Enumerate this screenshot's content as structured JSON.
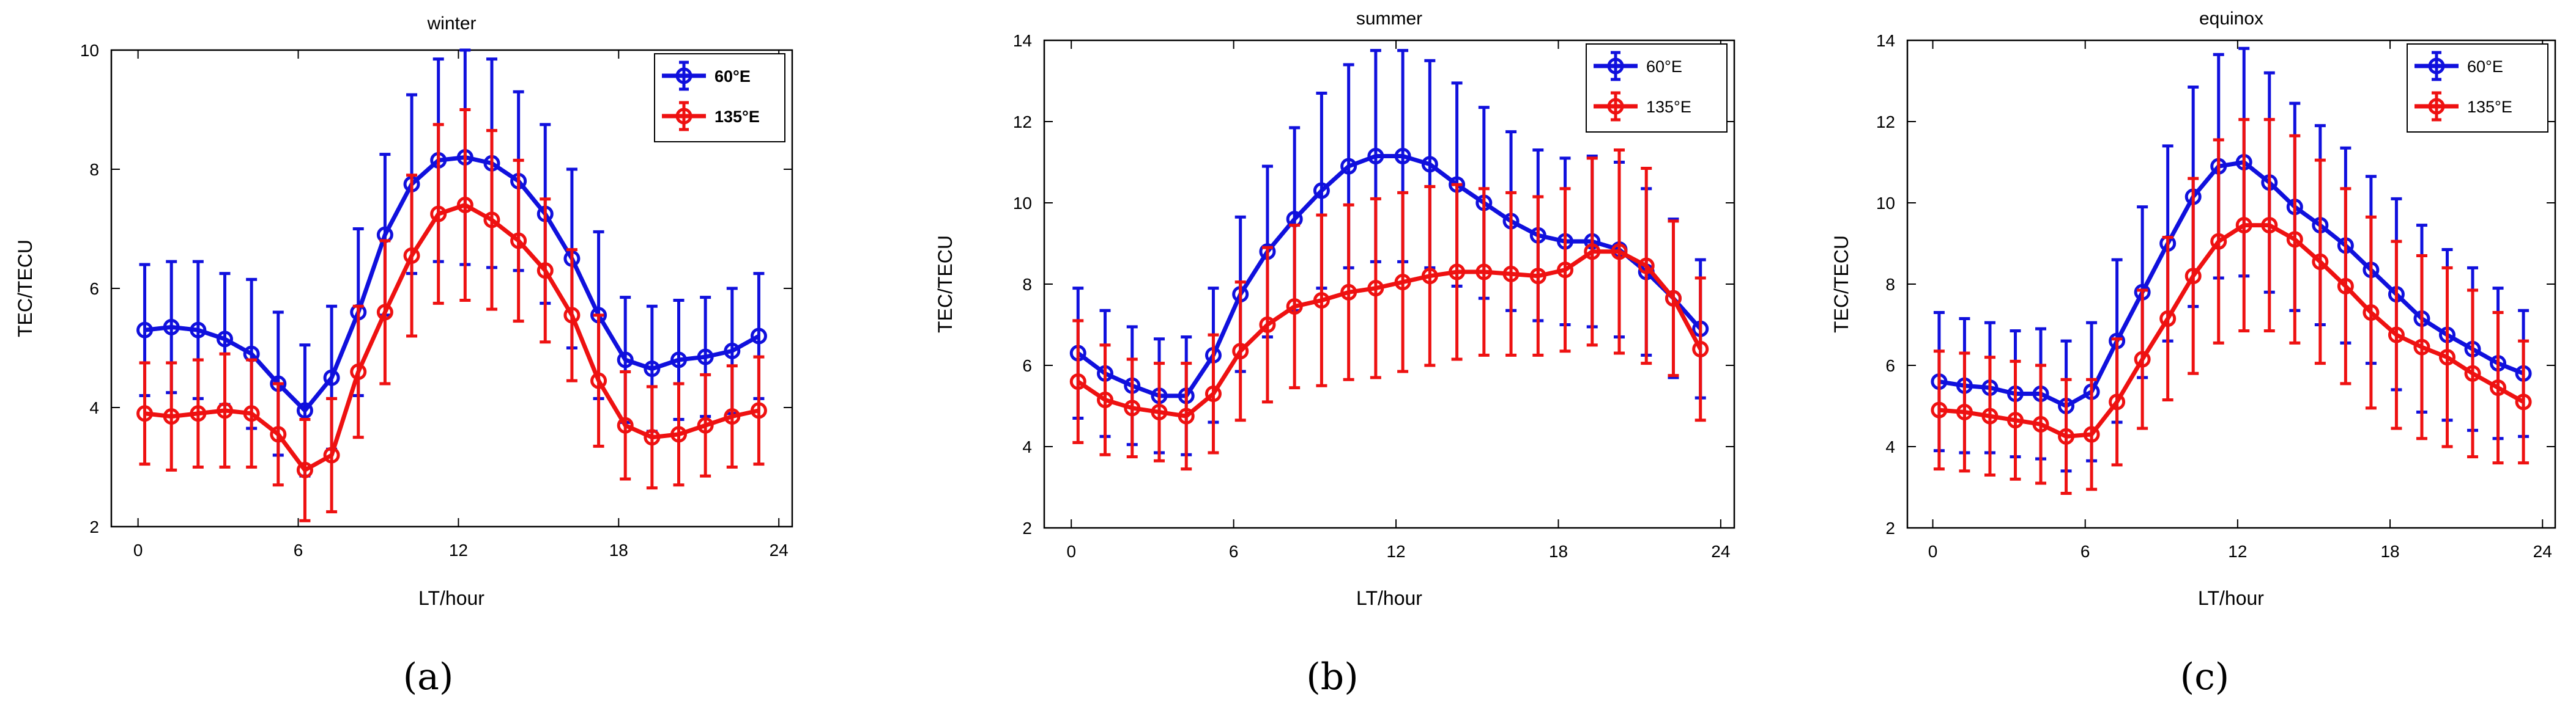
{
  "chart_data": [
    {
      "panel": "(a)",
      "type": "line",
      "title": "winter",
      "xlabel": "LT/hour",
      "ylabel": "TEC/TECU",
      "xlim": [
        -1,
        24.5
      ],
      "ylim": [
        2,
        10
      ],
      "xticks": [
        0,
        6,
        12,
        18,
        24
      ],
      "yticks": [
        2,
        4,
        6,
        8,
        10
      ],
      "legend_position": "top-right",
      "legend_bold": true,
      "x": [
        0.25,
        1.25,
        2.25,
        3.25,
        4.25,
        5.25,
        6.25,
        7.25,
        8.25,
        9.25,
        10.25,
        11.25,
        12.25,
        13.25,
        14.25,
        15.25,
        16.25,
        17.25,
        18.25,
        19.25,
        20.25,
        21.25,
        22.25,
        23.25
      ],
      "series": [
        {
          "name": "60°E",
          "color": "#1010dd",
          "values": [
            5.3,
            5.35,
            5.3,
            5.15,
            4.9,
            4.4,
            3.95,
            4.5,
            5.6,
            6.9,
            7.75,
            8.15,
            8.2,
            8.1,
            7.8,
            7.25,
            6.5,
            5.55,
            4.8,
            4.65,
            4.8,
            4.85,
            4.95,
            5.2
          ],
          "errors": [
            1.1,
            1.1,
            1.15,
            1.1,
            1.25,
            1.2,
            1.1,
            1.2,
            1.4,
            1.35,
            1.5,
            1.7,
            1.8,
            1.75,
            1.5,
            1.5,
            1.5,
            1.4,
            1.05,
            1.05,
            1.0,
            1.0,
            1.05,
            1.05
          ]
        },
        {
          "name": "135°E",
          "color": "#ee1111",
          "values": [
            3.9,
            3.85,
            3.9,
            3.95,
            3.9,
            3.55,
            2.95,
            3.2,
            4.6,
            5.6,
            6.55,
            7.25,
            7.4,
            7.15,
            6.8,
            6.3,
            5.55,
            4.45,
            3.7,
            3.5,
            3.55,
            3.7,
            3.85,
            3.95
          ],
          "errors": [
            0.85,
            0.9,
            0.9,
            0.95,
            0.9,
            0.85,
            0.85,
            0.95,
            1.1,
            1.2,
            1.35,
            1.5,
            1.6,
            1.5,
            1.35,
            1.2,
            1.1,
            1.1,
            0.9,
            0.85,
            0.85,
            0.85,
            0.85,
            0.9
          ]
        }
      ]
    },
    {
      "panel": "(b)",
      "type": "line",
      "title": "summer",
      "xlabel": "LT/hour",
      "ylabel": "TEC/TECU",
      "xlim": [
        -1,
        24.5
      ],
      "ylim": [
        2,
        14
      ],
      "xticks": [
        0,
        6,
        12,
        18,
        24
      ],
      "yticks": [
        2,
        4,
        6,
        8,
        10,
        12,
        14
      ],
      "legend_position": "top-right",
      "legend_bold": false,
      "x": [
        0.25,
        1.25,
        2.25,
        3.25,
        4.25,
        5.25,
        6.25,
        7.25,
        8.25,
        9.25,
        10.25,
        11.25,
        12.25,
        13.25,
        14.25,
        15.25,
        16.25,
        17.25,
        18.25,
        19.25,
        20.25,
        21.25,
        22.25,
        23.25
      ],
      "series": [
        {
          "name": "60°E",
          "color": "#1010dd",
          "values": [
            6.3,
            5.8,
            5.5,
            5.25,
            5.25,
            6.25,
            7.75,
            8.8,
            9.6,
            10.3,
            10.9,
            11.15,
            11.15,
            10.95,
            10.45,
            10.0,
            9.55,
            9.2,
            9.05,
            9.05,
            8.85,
            8.3,
            7.65,
            6.9
          ],
          "errors": [
            1.6,
            1.55,
            1.45,
            1.4,
            1.45,
            1.65,
            1.9,
            2.1,
            2.25,
            2.4,
            2.5,
            2.6,
            2.6,
            2.55,
            2.5,
            2.35,
            2.2,
            2.1,
            2.05,
            2.1,
            2.15,
            2.05,
            1.95,
            1.7
          ]
        },
        {
          "name": "135°E",
          "color": "#ee1111",
          "values": [
            5.6,
            5.15,
            4.95,
            4.85,
            4.75,
            5.3,
            6.35,
            7.0,
            7.45,
            7.6,
            7.8,
            7.9,
            8.05,
            8.2,
            8.3,
            8.3,
            8.25,
            8.2,
            8.35,
            8.8,
            8.8,
            8.45,
            7.65,
            6.4
          ],
          "errors": [
            1.5,
            1.35,
            1.2,
            1.2,
            1.3,
            1.45,
            1.7,
            1.9,
            2.0,
            2.1,
            2.15,
            2.2,
            2.2,
            2.2,
            2.15,
            2.05,
            2.0,
            1.95,
            2.0,
            2.3,
            2.5,
            2.4,
            1.9,
            1.75
          ]
        }
      ]
    },
    {
      "panel": "(c)",
      "type": "line",
      "title": "equinox",
      "xlabel": "LT/hour",
      "ylabel": "TEC/TECU",
      "xlim": [
        -1,
        24.5
      ],
      "ylim": [
        2,
        14
      ],
      "xticks": [
        0,
        6,
        12,
        18,
        24
      ],
      "yticks": [
        2,
        4,
        6,
        8,
        10,
        12,
        14
      ],
      "legend_position": "top-right",
      "legend_bold": false,
      "x": [
        0.25,
        1.25,
        2.25,
        3.25,
        4.25,
        5.25,
        6.25,
        7.25,
        8.25,
        9.25,
        10.25,
        11.25,
        12.25,
        13.25,
        14.25,
        15.25,
        16.25,
        17.25,
        18.25,
        19.25,
        20.25,
        21.25,
        22.25,
        23.25
      ],
      "series": [
        {
          "name": "60°E",
          "color": "#1010dd",
          "values": [
            5.6,
            5.5,
            5.45,
            5.3,
            5.3,
            5.0,
            5.35,
            6.6,
            7.8,
            9.0,
            10.15,
            10.9,
            11.0,
            10.5,
            9.9,
            9.45,
            8.95,
            8.35,
            7.75,
            7.15,
            6.75,
            6.4,
            6.05,
            5.8
          ],
          "errors": [
            1.7,
            1.65,
            1.6,
            1.55,
            1.6,
            1.6,
            1.7,
            2.0,
            2.1,
            2.4,
            2.7,
            2.75,
            2.8,
            2.7,
            2.55,
            2.45,
            2.4,
            2.3,
            2.35,
            2.3,
            2.1,
            2.0,
            1.85,
            1.55
          ]
        },
        {
          "name": "135°E",
          "color": "#ee1111",
          "values": [
            4.9,
            4.85,
            4.75,
            4.65,
            4.55,
            4.25,
            4.3,
            5.1,
            6.15,
            7.15,
            8.2,
            9.05,
            9.45,
            9.45,
            9.1,
            8.55,
            7.95,
            7.3,
            6.75,
            6.45,
            6.2,
            5.8,
            5.45,
            5.1
          ],
          "errors": [
            1.45,
            1.45,
            1.45,
            1.45,
            1.45,
            1.4,
            1.35,
            1.55,
            1.7,
            2.0,
            2.4,
            2.5,
            2.6,
            2.6,
            2.55,
            2.5,
            2.4,
            2.35,
            2.3,
            2.25,
            2.2,
            2.05,
            1.85,
            1.5
          ]
        }
      ]
    }
  ]
}
